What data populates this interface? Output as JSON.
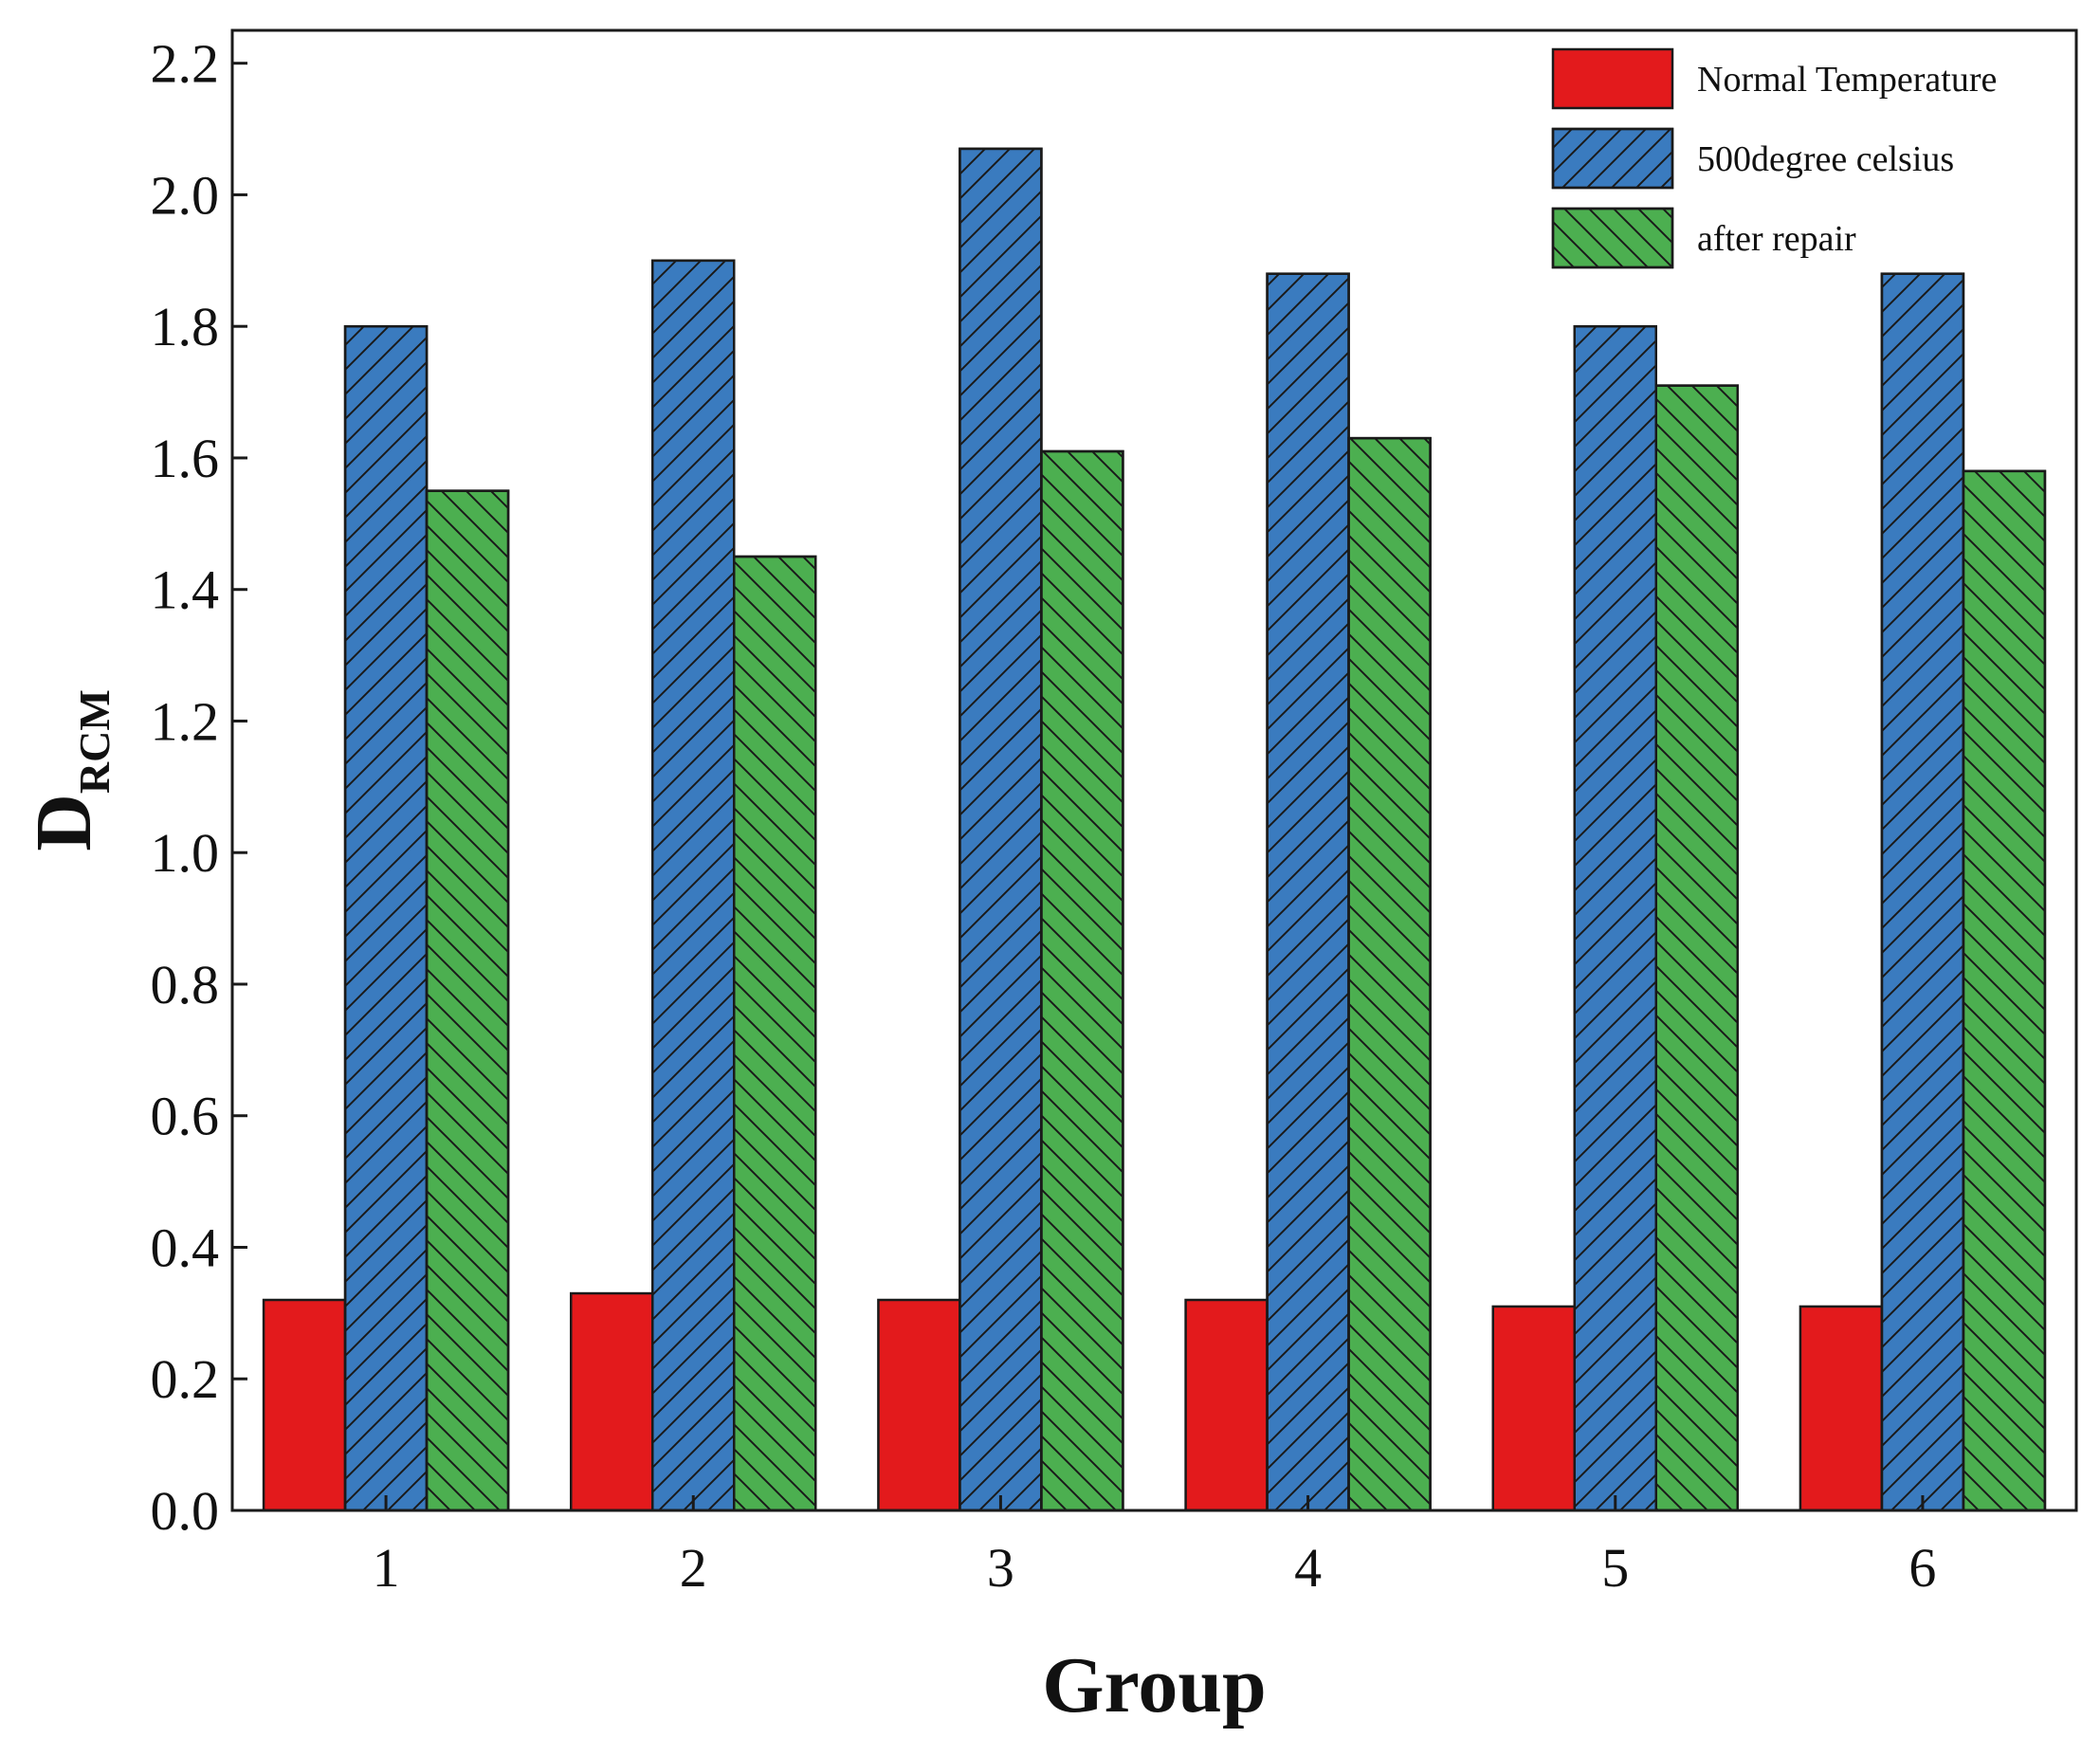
{
  "chart_data": {
    "type": "bar",
    "title": "",
    "xlabel": "Group",
    "ylabel": {
      "main": "D",
      "subscript": "RCM"
    },
    "categories": [
      "1",
      "2",
      "3",
      "4",
      "5",
      "6"
    ],
    "ylim": [
      0,
      2.25
    ],
    "yticks": [
      0.0,
      0.2,
      0.4,
      0.6,
      0.8,
      1.0,
      1.2,
      1.4,
      1.6,
      1.8,
      2.0,
      2.2
    ],
    "ytick_labels": [
      "0.0",
      "0.2",
      "0.4",
      "0.6",
      "0.8",
      "1.0",
      "1.2",
      "1.4",
      "1.6",
      "1.8",
      "2.0",
      "2.2"
    ],
    "grid": false,
    "legend_position": "top-right",
    "series": [
      {
        "name": "Normal Temperature",
        "color": "#e31a1c",
        "hatch": "none",
        "values": [
          0.32,
          0.33,
          0.32,
          0.32,
          0.31,
          0.31
        ]
      },
      {
        "name": "500degree celsius",
        "color": "#3a7bbf",
        "hatch": "forward",
        "values": [
          1.8,
          1.9,
          2.07,
          1.88,
          1.8,
          1.88
        ]
      },
      {
        "name": "after repair",
        "color": "#4caf50",
        "hatch": "backward",
        "values": [
          1.55,
          1.45,
          1.61,
          1.63,
          1.71,
          1.58
        ]
      }
    ]
  }
}
